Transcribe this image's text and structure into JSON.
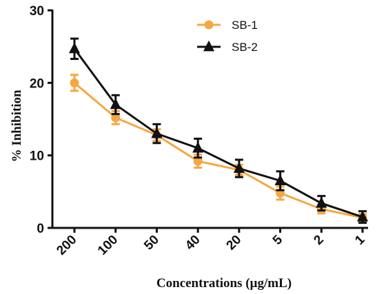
{
  "chart_data": {
    "type": "line",
    "title": "",
    "xlabel": "Concentrations (µg/mL)",
    "ylabel": "% Inhibition",
    "categories": [
      "200",
      "100",
      "50",
      "40",
      "20",
      "5",
      "2",
      "1"
    ],
    "ylim": [
      0,
      30
    ],
    "yticks": [
      "0",
      "10",
      "20",
      "30"
    ],
    "grid": false,
    "legend_position": "top-right",
    "series": [
      {
        "name": "SB-1",
        "color": "#F5A742",
        "marker": "circle",
        "values": [
          20.0,
          15.2,
          12.8,
          9.2,
          8.0,
          4.8,
          2.6,
          1.4
        ],
        "errors": [
          1.1,
          0.9,
          0.8,
          0.9,
          0.7,
          0.9,
          0.6,
          0.5
        ]
      },
      {
        "name": "SB-2",
        "color": "#111111",
        "marker": "triangle",
        "values": [
          24.7,
          17.0,
          13.0,
          11.0,
          8.2,
          6.5,
          3.4,
          1.5
        ],
        "errors": [
          1.4,
          1.3,
          1.3,
          1.3,
          1.2,
          1.3,
          1.0,
          0.8
        ]
      }
    ]
  }
}
